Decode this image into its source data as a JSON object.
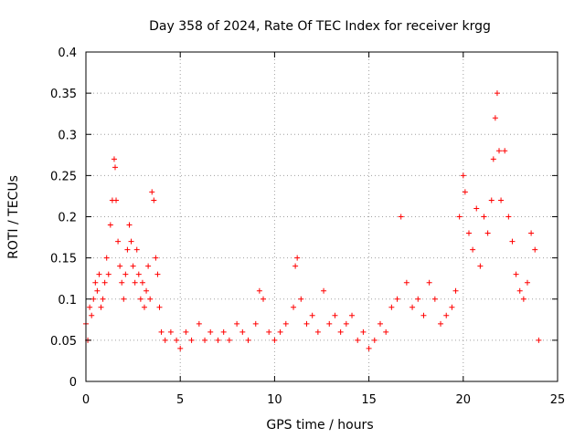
{
  "chart_data": {
    "type": "scatter",
    "title": "Day 358 of 2024, Rate Of TEC Index for receiver krgg",
    "xlabel": "GPS time / hours",
    "ylabel": "ROTI / TECUs",
    "xlim": [
      0,
      25
    ],
    "ylim": [
      0,
      0.4
    ],
    "x_ticks": [
      0,
      5,
      10,
      15,
      20,
      25
    ],
    "x_tick_labels": [
      "0",
      "5",
      "10",
      "15",
      "20",
      "25"
    ],
    "y_ticks": [
      0,
      0.05,
      0.1,
      0.15,
      0.2,
      0.25,
      0.3,
      0.35,
      0.4
    ],
    "y_tick_labels": [
      "0",
      "0.05",
      "0.1",
      "0.15",
      "0.2",
      "0.25",
      "0.3",
      "0.35",
      "0.4"
    ],
    "grid": true,
    "marker": "plus",
    "marker_color": "#ff0000",
    "series": [
      {
        "x": [
          0.0,
          0.1,
          0.2,
          0.3,
          0.4,
          0.5,
          0.6,
          0.7,
          0.8,
          0.9,
          1.0,
          1.1,
          1.2,
          1.3,
          1.4,
          1.5,
          1.55,
          1.6,
          1.7,
          1.8,
          1.9,
          2.0,
          2.1,
          2.2,
          2.3,
          2.4,
          2.5,
          2.6,
          2.7,
          2.8,
          2.9,
          3.0,
          3.1,
          3.2,
          3.3,
          3.4,
          3.5,
          3.6,
          3.7,
          3.8,
          3.9,
          4.0,
          4.2,
          4.5,
          4.8,
          5.0,
          5.3,
          5.6,
          6.0,
          6.3,
          6.6,
          7.0,
          7.3,
          7.6,
          8.0,
          8.3,
          8.6,
          9.0,
          9.2,
          9.4,
          9.7,
          10.0,
          10.3,
          10.6,
          11.0,
          11.1,
          11.2,
          11.4,
          11.7,
          12.0,
          12.3,
          12.6,
          12.9,
          13.2,
          13.5,
          13.8,
          14.1,
          14.4,
          14.7,
          15.0,
          15.3,
          15.6,
          15.9,
          16.2,
          16.5,
          16.7,
          17.0,
          17.3,
          17.6,
          17.9,
          18.2,
          18.5,
          18.8,
          19.1,
          19.4,
          19.6,
          19.8,
          20.0,
          20.1,
          20.3,
          20.5,
          20.7,
          20.9,
          21.1,
          21.3,
          21.5,
          21.6,
          21.7,
          21.8,
          21.9,
          22.0,
          22.2,
          22.4,
          22.6,
          22.8,
          23.0,
          23.2,
          23.4,
          23.6,
          23.8,
          24.0
        ],
        "y": [
          0.07,
          0.05,
          0.09,
          0.08,
          0.1,
          0.12,
          0.11,
          0.13,
          0.09,
          0.1,
          0.12,
          0.15,
          0.13,
          0.19,
          0.22,
          0.27,
          0.26,
          0.22,
          0.17,
          0.14,
          0.12,
          0.1,
          0.13,
          0.16,
          0.19,
          0.17,
          0.14,
          0.12,
          0.16,
          0.13,
          0.1,
          0.12,
          0.09,
          0.11,
          0.14,
          0.1,
          0.23,
          0.22,
          0.15,
          0.13,
          0.09,
          0.06,
          0.05,
          0.06,
          0.05,
          0.04,
          0.06,
          0.05,
          0.07,
          0.05,
          0.06,
          0.05,
          0.06,
          0.05,
          0.07,
          0.06,
          0.05,
          0.07,
          0.11,
          0.1,
          0.06,
          0.05,
          0.06,
          0.07,
          0.09,
          0.14,
          0.15,
          0.1,
          0.07,
          0.08,
          0.06,
          0.11,
          0.07,
          0.08,
          0.06,
          0.07,
          0.08,
          0.05,
          0.06,
          0.04,
          0.05,
          0.07,
          0.06,
          0.09,
          0.1,
          0.2,
          0.12,
          0.09,
          0.1,
          0.08,
          0.12,
          0.1,
          0.07,
          0.08,
          0.09,
          0.11,
          0.2,
          0.25,
          0.23,
          0.18,
          0.16,
          0.21,
          0.14,
          0.2,
          0.18,
          0.22,
          0.27,
          0.32,
          0.35,
          0.28,
          0.22,
          0.28,
          0.2,
          0.17,
          0.13,
          0.11,
          0.1,
          0.12,
          0.18,
          0.16,
          0.05
        ]
      }
    ]
  }
}
